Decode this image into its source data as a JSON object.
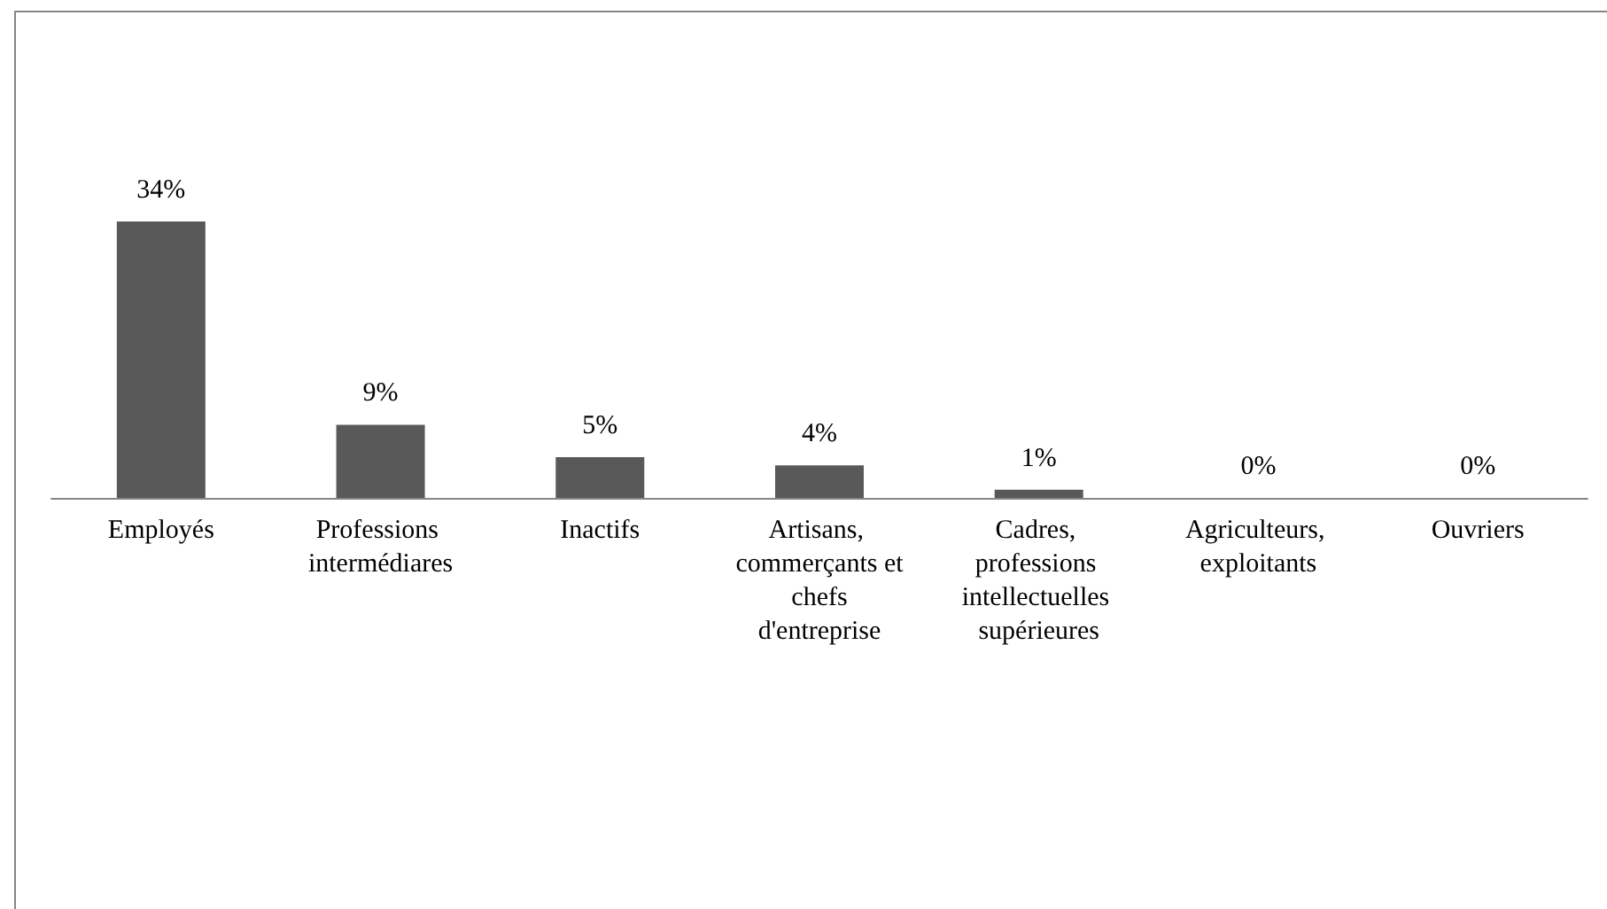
{
  "chart_data": {
    "type": "bar",
    "categories": [
      "Employés",
      "Professions intermédiares",
      "Inactifs",
      "Artisans, commerçants et chefs d'entreprise",
      "Cadres, professions intellectuelles supérieures",
      "Agriculteurs, exploitants",
      "Ouvriers"
    ],
    "values": [
      34,
      9,
      5,
      4,
      1,
      0,
      0
    ],
    "value_labels": [
      "34%",
      "9%",
      "5%",
      "4%",
      "1%",
      "0%",
      "0%"
    ],
    "color": "#595959"
  }
}
